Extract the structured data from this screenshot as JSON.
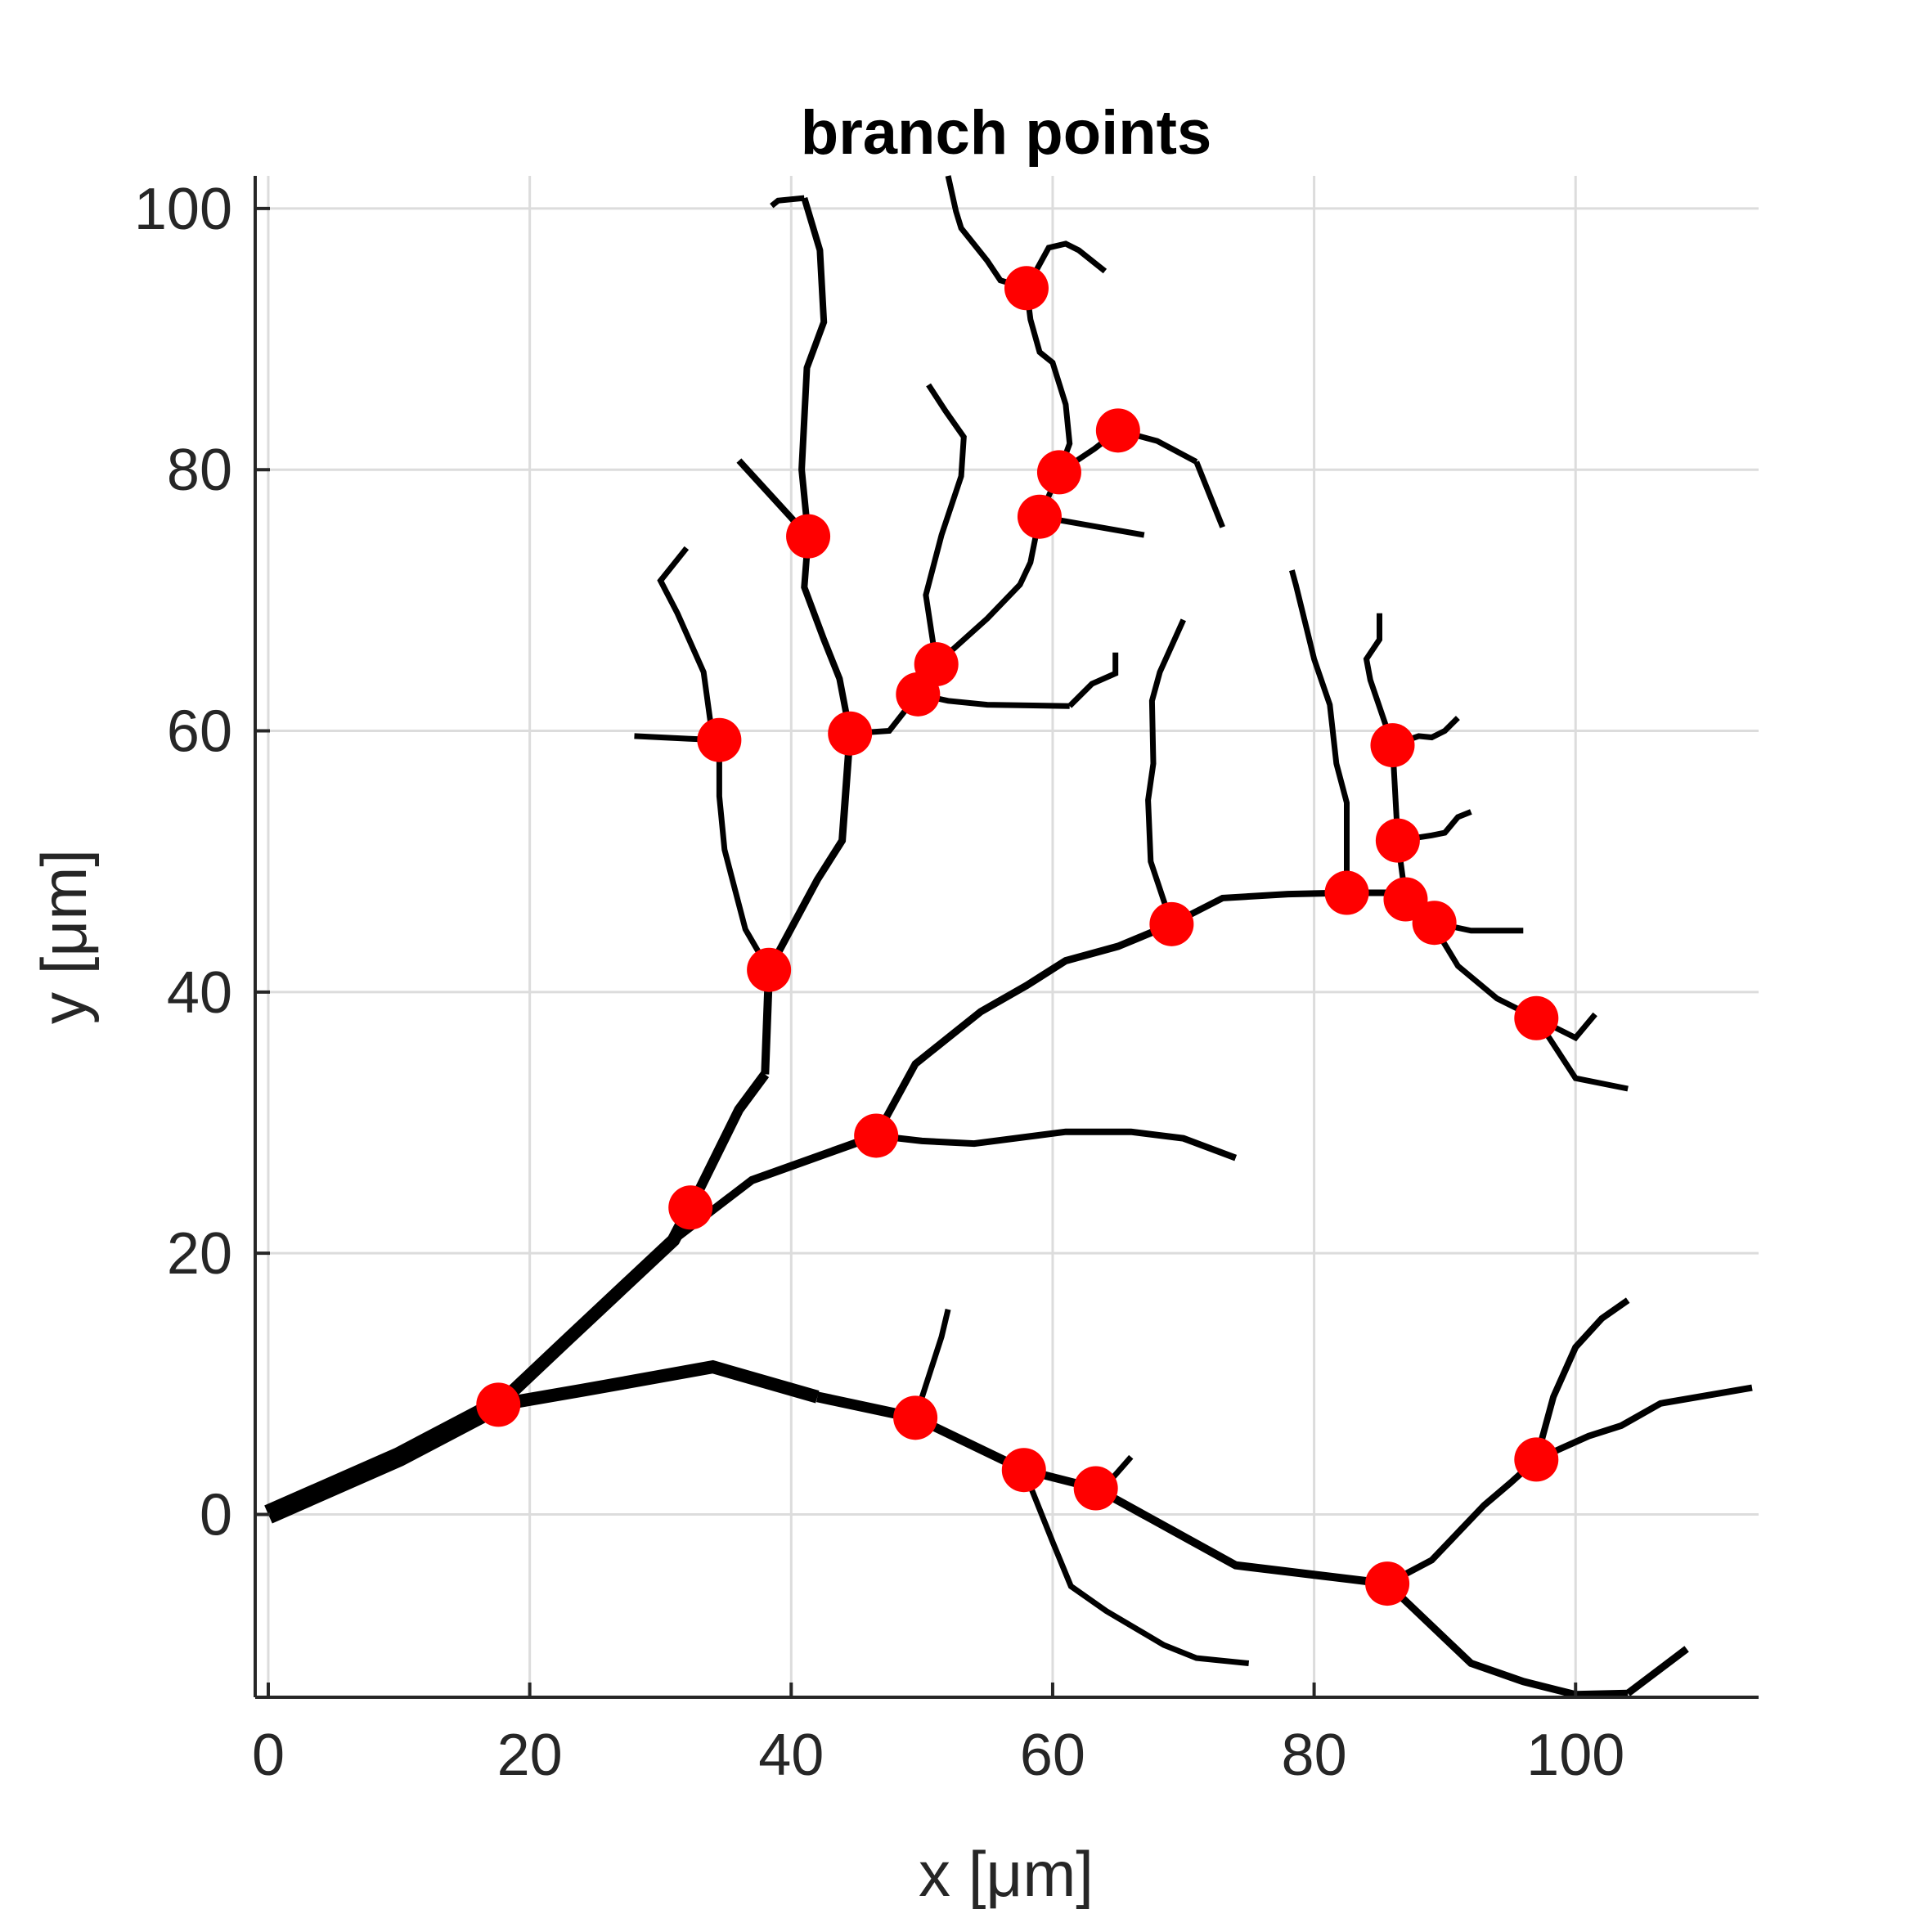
{
  "chart_data": {
    "type": "line",
    "title": "branch points",
    "xlabel": "x [μm]",
    "ylabel": "y [μm]",
    "xlim": [
      -1,
      114
    ],
    "ylim": [
      -14,
      102.5
    ],
    "xticks": [
      0,
      20,
      40,
      60,
      80,
      100
    ],
    "yticks": [
      0,
      20,
      40,
      60,
      80,
      100
    ],
    "xtick_labels": [
      "0",
      "20",
      "40",
      "60",
      "80",
      "100"
    ],
    "ytick_labels": [
      "0",
      "20",
      "40",
      "60",
      "80",
      "100"
    ],
    "grid": true,
    "colors": {
      "branch": "#000000",
      "branch_point": "#ff0000",
      "grid": "#dcdcdc",
      "axis": "#262626"
    },
    "branches": [
      {
        "w": 24,
        "pts": [
          [
            0,
            0
          ],
          [
            10,
            4.4
          ],
          [
            17.6,
            8.4
          ]
        ]
      },
      {
        "w": 16,
        "pts": [
          [
            17.6,
            8.4
          ],
          [
            23,
            13.5
          ],
          [
            31,
            21
          ],
          [
            32.3,
            23.5
          ]
        ]
      },
      {
        "w": 12,
        "pts": [
          [
            32.3,
            23.5
          ],
          [
            36,
            31
          ],
          [
            38,
            33.7
          ]
        ]
      },
      {
        "w": 10,
        "pts": [
          [
            38,
            33.7
          ],
          [
            38.3,
            41.7
          ]
        ]
      },
      {
        "w": 9,
        "pts": [
          [
            38.3,
            41.7
          ],
          [
            42,
            48.6
          ],
          [
            43.9,
            51.6
          ],
          [
            44.5,
            59.8
          ]
        ]
      },
      {
        "w": 8,
        "pts": [
          [
            44.5,
            59.8
          ],
          [
            43.7,
            64
          ],
          [
            42.5,
            67
          ],
          [
            41,
            71
          ],
          [
            41.3,
            74.9
          ]
        ]
      },
      {
        "w": 8,
        "pts": [
          [
            41.3,
            74.9
          ],
          [
            40.8,
            80
          ],
          [
            41.2,
            87.8
          ],
          [
            42.5,
            91.3
          ],
          [
            42.2,
            96.8
          ],
          [
            41,
            100.8
          ]
        ]
      },
      {
        "w": 8,
        "pts": [
          [
            41.3,
            74.9
          ],
          [
            36,
            80.7
          ]
        ]
      },
      {
        "w": 7,
        "pts": [
          [
            41,
            100.8
          ],
          [
            39,
            100.6
          ],
          [
            38.5,
            100.2
          ]
        ]
      },
      {
        "w": 7,
        "pts": [
          [
            38.3,
            41.7
          ],
          [
            36.5,
            44.8
          ],
          [
            34.9,
            50.9
          ],
          [
            34.5,
            55
          ],
          [
            34.5,
            59.3
          ]
        ]
      },
      {
        "w": 7,
        "pts": [
          [
            34.5,
            59.3
          ],
          [
            33.9,
            60.1
          ],
          [
            33.3,
            64.5
          ],
          [
            31.3,
            69
          ],
          [
            30,
            71.5
          ],
          [
            32,
            74
          ]
        ]
      },
      {
        "w": 7,
        "pts": [
          [
            34.5,
            59.3
          ],
          [
            32.1,
            59.4
          ],
          [
            28,
            59.6
          ]
        ]
      },
      {
        "w": 7,
        "pts": [
          [
            44.5,
            59.8
          ],
          [
            47.5,
            60
          ],
          [
            49.7,
            62.8
          ]
        ]
      },
      {
        "w": 7,
        "pts": [
          [
            49.7,
            62.8
          ],
          [
            51.1,
            65.1
          ]
        ]
      },
      {
        "w": 7,
        "pts": [
          [
            51.1,
            65.1
          ],
          [
            50.3,
            70.4
          ],
          [
            51.5,
            75
          ],
          [
            53,
            79.5
          ],
          [
            53.2,
            82.5
          ],
          [
            51.8,
            84.5
          ],
          [
            50.5,
            86.5
          ]
        ]
      },
      {
        "w": 7,
        "pts": [
          [
            51.1,
            65.1
          ],
          [
            55,
            68.6
          ],
          [
            57.5,
            71.2
          ],
          [
            58.3,
            72.9
          ],
          [
            59,
            76.4
          ]
        ]
      },
      {
        "w": 7,
        "pts": [
          [
            59,
            76.4
          ],
          [
            60.5,
            79.8
          ]
        ]
      },
      {
        "w": 7,
        "pts": [
          [
            60.5,
            79.8
          ],
          [
            61.3,
            82
          ],
          [
            61,
            85
          ],
          [
            60,
            88.2
          ],
          [
            59,
            89
          ],
          [
            58.3,
            91.5
          ],
          [
            58,
            93.9
          ]
        ]
      },
      {
        "w": 7,
        "pts": [
          [
            60.5,
            79.8
          ],
          [
            63.2,
            81.6
          ],
          [
            65,
            83
          ]
        ]
      },
      {
        "w": 7,
        "pts": [
          [
            65,
            83
          ],
          [
            68,
            82.2
          ],
          [
            71,
            80.6
          ]
        ]
      },
      {
        "w": 7,
        "pts": [
          [
            71,
            80.6
          ],
          [
            73,
            75.6
          ]
        ]
      },
      {
        "w": 7,
        "pts": [
          [
            59,
            76.4
          ],
          [
            67,
            75
          ]
        ]
      },
      {
        "w": 7,
        "pts": [
          [
            58,
            93.9
          ],
          [
            56,
            94.5
          ],
          [
            55,
            96
          ],
          [
            53,
            98.5
          ],
          [
            52.6,
            99.8
          ],
          [
            52,
            102.5
          ]
        ]
      },
      {
        "w": 7,
        "pts": [
          [
            58,
            93.9
          ],
          [
            59.7,
            97
          ],
          [
            61,
            97.3
          ],
          [
            62,
            96.8
          ],
          [
            64,
            95.2
          ]
        ]
      },
      {
        "w": 7,
        "pts": [
          [
            49.7,
            62.8
          ],
          [
            52,
            62.3
          ],
          [
            55,
            62
          ],
          [
            61.3,
            61.9
          ]
        ]
      },
      {
        "w": 7,
        "pts": [
          [
            61.3,
            61.9
          ],
          [
            63,
            63.6
          ],
          [
            64.8,
            64.4
          ],
          [
            64.8,
            66
          ]
        ]
      },
      {
        "w": 16,
        "pts": [
          [
            17.6,
            8.4
          ],
          [
            24,
            9.5
          ],
          [
            34,
            11.3
          ],
          [
            42,
            9
          ]
        ]
      },
      {
        "w": 13,
        "pts": [
          [
            42,
            9
          ],
          [
            49.5,
            7.4
          ]
        ]
      },
      {
        "w": 11,
        "pts": [
          [
            49.5,
            7.4
          ],
          [
            57.8,
            3.4
          ]
        ]
      },
      {
        "w": 10,
        "pts": [
          [
            57.8,
            3.4
          ],
          [
            63.3,
            2
          ]
        ]
      },
      {
        "w": 10,
        "pts": [
          [
            63.3,
            2
          ],
          [
            74,
            -3.9
          ],
          [
            85.6,
            -5.3
          ]
        ]
      },
      {
        "w": 9,
        "pts": [
          [
            85.6,
            -5.3
          ],
          [
            92,
            -11.4
          ],
          [
            96,
            -12.8
          ],
          [
            100,
            -13.8
          ],
          [
            104,
            -13.7
          ]
        ]
      },
      {
        "w": 9,
        "pts": [
          [
            104,
            -13.7
          ],
          [
            108.5,
            -10.3
          ]
        ]
      },
      {
        "w": 8,
        "pts": [
          [
            85.6,
            -5.3
          ],
          [
            89,
            -3.5
          ],
          [
            93,
            0.7
          ],
          [
            95,
            2.4
          ],
          [
            97,
            4.2
          ]
        ]
      },
      {
        "w": 8,
        "pts": [
          [
            97,
            4.2
          ],
          [
            101,
            6
          ],
          [
            103.5,
            6.8
          ],
          [
            106.5,
            8.5
          ],
          [
            113.5,
            9.7
          ]
        ]
      },
      {
        "w": 8,
        "pts": [
          [
            97,
            4.2
          ],
          [
            98.3,
            9
          ],
          [
            100,
            12.8
          ],
          [
            102,
            15
          ],
          [
            104,
            16.4
          ]
        ]
      },
      {
        "w": 7,
        "pts": [
          [
            49.5,
            7.4
          ],
          [
            51.5,
            13.6
          ],
          [
            52,
            15.7
          ]
        ]
      },
      {
        "w": 7,
        "pts": [
          [
            57.8,
            3.4
          ],
          [
            60,
            -2.1
          ],
          [
            61.4,
            -5.5
          ],
          [
            64.1,
            -7.4
          ],
          [
            68.5,
            -10
          ],
          [
            71,
            -11
          ],
          [
            75,
            -11.4
          ]
        ]
      },
      {
        "w": 7,
        "pts": [
          [
            63.3,
            2
          ],
          [
            64.5,
            2.7
          ],
          [
            66,
            4.4
          ]
        ]
      },
      {
        "w": 10,
        "pts": [
          [
            31,
            21
          ],
          [
            37,
            25.6
          ],
          [
            46.5,
            29
          ]
        ]
      },
      {
        "w": 9,
        "pts": [
          [
            46.5,
            29
          ],
          [
            49.5,
            34.5
          ],
          [
            54.5,
            38.5
          ],
          [
            58,
            40.5
          ],
          [
            61,
            42.4
          ],
          [
            65,
            43.5
          ],
          [
            69.1,
            45.2
          ]
        ]
      },
      {
        "w": 8,
        "pts": [
          [
            69.1,
            45.2
          ],
          [
            73,
            47.2
          ],
          [
            78,
            47.5
          ],
          [
            82.5,
            47.6
          ]
        ]
      },
      {
        "w": 8,
        "pts": [
          [
            82.5,
            47.6
          ],
          [
            86.8,
            47.6
          ],
          [
            87,
            47.1
          ]
        ]
      },
      {
        "w": 7,
        "pts": [
          [
            87,
            47.1
          ],
          [
            89,
            45.3
          ],
          [
            91,
            42
          ],
          [
            94,
            39.5
          ],
          [
            97,
            38
          ]
        ]
      },
      {
        "w": 7,
        "pts": [
          [
            97,
            38
          ],
          [
            100,
            36.5
          ],
          [
            101.5,
            38.3
          ]
        ]
      },
      {
        "w": 7,
        "pts": [
          [
            97,
            38
          ],
          [
            100,
            33.4
          ],
          [
            104,
            32.6
          ]
        ]
      },
      {
        "w": 7,
        "pts": [
          [
            87,
            47.1
          ],
          [
            89.2,
            45.3
          ],
          [
            92,
            44.7
          ],
          [
            96,
            44.7
          ]
        ]
      },
      {
        "w": 7,
        "pts": [
          [
            87,
            47.1
          ],
          [
            86.4,
            51.6
          ]
        ]
      },
      {
        "w": 7,
        "pts": [
          [
            86.4,
            51.6
          ],
          [
            89,
            52
          ],
          [
            90,
            52.2
          ],
          [
            91,
            53.4
          ],
          [
            92,
            53.8
          ]
        ]
      },
      {
        "w": 7,
        "pts": [
          [
            86.4,
            51.6
          ],
          [
            86,
            58.9
          ]
        ]
      },
      {
        "w": 7,
        "pts": [
          [
            86,
            58.9
          ],
          [
            88,
            59.6
          ],
          [
            89,
            59.5
          ],
          [
            90,
            60
          ],
          [
            91,
            61
          ]
        ]
      },
      {
        "w": 7,
        "pts": [
          [
            86,
            58.9
          ],
          [
            84.3,
            63.9
          ],
          [
            84,
            65.5
          ],
          [
            85,
            67
          ],
          [
            85,
            69
          ]
        ]
      },
      {
        "w": 7,
        "pts": [
          [
            82.5,
            47.6
          ],
          [
            82.5,
            54.5
          ],
          [
            81.7,
            57.5
          ],
          [
            81.2,
            62
          ],
          [
            80,
            65.5
          ],
          [
            78.6,
            71.2
          ],
          [
            78.3,
            72.3
          ]
        ]
      },
      {
        "w": 7,
        "pts": [
          [
            69.1,
            45.2
          ],
          [
            67.5,
            50
          ],
          [
            67.3,
            54.7
          ],
          [
            67.7,
            57.5
          ],
          [
            67.6,
            62.3
          ],
          [
            68.2,
            64.5
          ],
          [
            70,
            68.5
          ]
        ]
      },
      {
        "w": 8,
        "pts": [
          [
            46.5,
            29
          ],
          [
            50,
            28.6
          ],
          [
            54,
            28.4
          ],
          [
            61,
            29.3
          ],
          [
            66,
            29.3
          ],
          [
            70,
            28.8
          ],
          [
            74,
            27.3
          ]
        ]
      }
    ],
    "branch_points": [
      [
        17.6,
        8.4
      ],
      [
        32.3,
        23.5
      ],
      [
        46.5,
        29
      ],
      [
        38.3,
        41.7
      ],
      [
        34.5,
        59.3
      ],
      [
        44.5,
        59.8
      ],
      [
        41.3,
        74.9
      ],
      [
        49.7,
        62.8
      ],
      [
        51.1,
        65.1
      ],
      [
        59,
        76.4
      ],
      [
        60.5,
        79.8
      ],
      [
        65,
        83
      ],
      [
        58,
        93.9
      ],
      [
        69.1,
        45.2
      ],
      [
        82.5,
        47.6
      ],
      [
        87,
        47.1
      ],
      [
        89.2,
        45.3
      ],
      [
        86.4,
        51.6
      ],
      [
        86,
        58.9
      ],
      [
        97,
        38
      ],
      [
        49.5,
        7.4
      ],
      [
        57.8,
        3.4
      ],
      [
        63.3,
        2
      ],
      [
        85.6,
        -5.3
      ],
      [
        97,
        4.2
      ]
    ]
  }
}
